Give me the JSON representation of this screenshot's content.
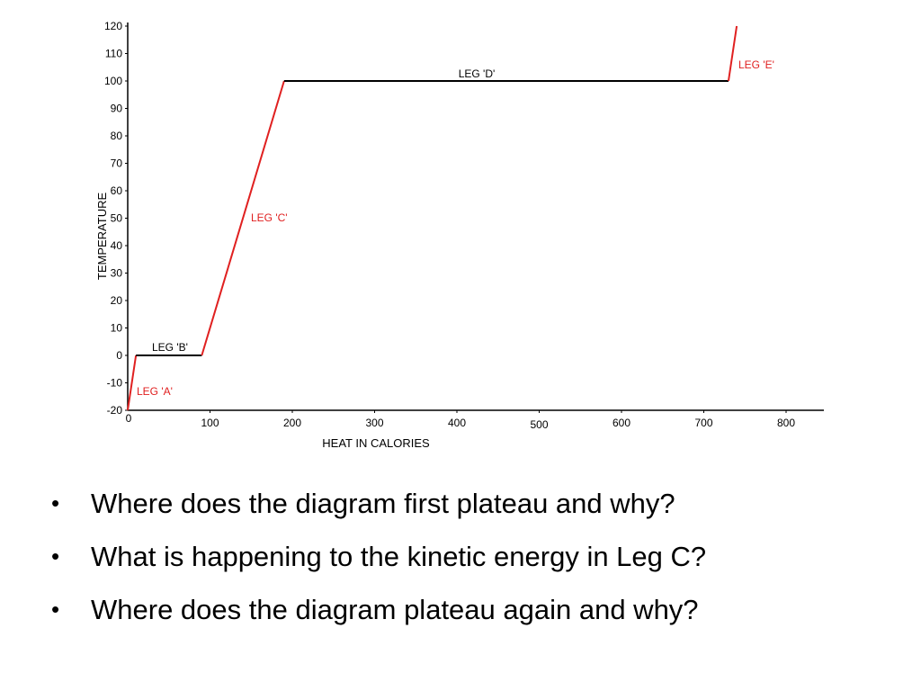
{
  "chart_data": {
    "type": "line",
    "title": "",
    "xlabel": "HEAT IN CALORIES",
    "ylabel": "TEMPERATURE",
    "xlim": [
      0,
      840
    ],
    "ylim": [
      -20,
      120
    ],
    "x_ticks": [
      0,
      100,
      200,
      300,
      400,
      500,
      600,
      700,
      800
    ],
    "y_ticks": [
      -20,
      -10,
      0,
      10,
      20,
      30,
      40,
      50,
      60,
      70,
      80,
      90,
      100,
      110,
      120
    ],
    "grid": false,
    "legend": "none",
    "segments": [
      {
        "label": "LEG 'A'",
        "color": "#e02020",
        "points": [
          [
            0,
            -20
          ],
          [
            10,
            0
          ]
        ]
      },
      {
        "label": "LEG 'B'",
        "color": "#000000",
        "points": [
          [
            10,
            0
          ],
          [
            90,
            0
          ]
        ]
      },
      {
        "label": "LEG 'C'",
        "color": "#e02020",
        "points": [
          [
            90,
            0
          ],
          [
            190,
            100
          ]
        ]
      },
      {
        "label": "LEG 'D'",
        "color": "#000000",
        "points": [
          [
            190,
            100
          ],
          [
            730,
            100
          ]
        ]
      },
      {
        "label": "LEG 'E'",
        "color": "#e02020",
        "points": [
          [
            730,
            100
          ],
          [
            740,
            120
          ]
        ]
      }
    ]
  },
  "questions": [
    "Where does the diagram first plateau and why?",
    "What is happening to the kinetic energy in Leg C?",
    "Where does the diagram plateau again and why?"
  ],
  "bullet_symbol": "•"
}
